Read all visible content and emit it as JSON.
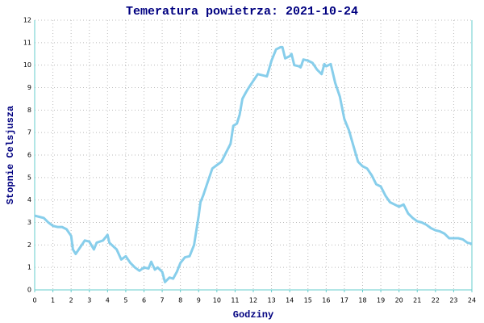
{
  "chart_data": {
    "type": "line",
    "title": "Temeratura powietrza: 2021-10-24",
    "x_label": "Godziny",
    "y_label": "Stopnie Celsjusza",
    "color": "#87ceeb",
    "grid": true,
    "xlim": [
      0,
      24
    ],
    "xticks": [
      0,
      1,
      2,
      3,
      4,
      5,
      6,
      7,
      8,
      9,
      10,
      11,
      12,
      13,
      14,
      15,
      16,
      17,
      18,
      19,
      20,
      21,
      22,
      23,
      24
    ],
    "ylim": [
      0,
      12
    ],
    "yticks": [
      0,
      1,
      2,
      3,
      4,
      5,
      6,
      7,
      8,
      9,
      10,
      11,
      12
    ],
    "x": [
      0,
      0.25,
      0.5,
      0.75,
      1,
      1.25,
      1.5,
      1.75,
      2,
      2.1,
      2.25,
      2.5,
      2.75,
      3,
      3.25,
      3.4,
      3.75,
      4,
      4.1,
      4.5,
      4.75,
      5,
      5.25,
      5.5,
      5.75,
      6,
      6.25,
      6.4,
      6.6,
      6.75,
      7,
      7.15,
      7.4,
      7.6,
      7.8,
      8,
      8.25,
      8.5,
      8.75,
      9,
      9.1,
      9.25,
      9.5,
      9.75,
      10,
      10.25,
      10.5,
      10.75,
      10.9,
      11.1,
      11.25,
      11.4,
      11.6,
      11.75,
      12,
      12.25,
      12.5,
      12.75,
      13,
      13.25,
      13.5,
      13.6,
      13.75,
      14,
      14.1,
      14.25,
      14.5,
      14.6,
      14.75,
      15,
      15.25,
      15.5,
      15.75,
      15.9,
      16,
      16.25,
      16.5,
      16.75,
      17,
      17.25,
      17.5,
      17.75,
      18,
      18.25,
      18.5,
      18.75,
      19,
      19.25,
      19.5,
      19.75,
      20,
      20.25,
      20.5,
      20.75,
      21,
      21.25,
      21.5,
      21.75,
      22,
      22.25,
      22.5,
      22.75,
      23,
      23.25,
      23.5,
      23.75,
      24
    ],
    "values": [
      3.3,
      3.25,
      3.2,
      3.0,
      2.85,
      2.8,
      2.8,
      2.7,
      2.4,
      1.8,
      1.6,
      1.9,
      2.2,
      2.15,
      1.8,
      2.1,
      2.2,
      2.45,
      2.1,
      1.8,
      1.35,
      1.5,
      1.2,
      1.0,
      0.85,
      1.0,
      0.95,
      1.25,
      0.9,
      1.0,
      0.8,
      0.35,
      0.55,
      0.5,
      0.8,
      1.2,
      1.45,
      1.5,
      2.0,
      3.3,
      3.9,
      4.2,
      4.8,
      5.4,
      5.55,
      5.7,
      6.1,
      6.5,
      7.3,
      7.4,
      7.8,
      8.5,
      8.8,
      9.0,
      9.3,
      9.6,
      9.55,
      9.5,
      10.2,
      10.7,
      10.8,
      10.8,
      10.3,
      10.4,
      10.5,
      10.0,
      9.95,
      9.9,
      10.25,
      10.2,
      10.1,
      9.8,
      9.6,
      10.05,
      9.95,
      10.05,
      9.2,
      8.6,
      7.6,
      7.1,
      6.4,
      5.7,
      5.5,
      5.4,
      5.1,
      4.7,
      4.6,
      4.2,
      3.9,
      3.8,
      3.7,
      3.8,
      3.4,
      3.2,
      3.05,
      3.0,
      2.9,
      2.75,
      2.65,
      2.6,
      2.5,
      2.3,
      2.3,
      2.3,
      2.25,
      2.1,
      2.05
    ]
  }
}
